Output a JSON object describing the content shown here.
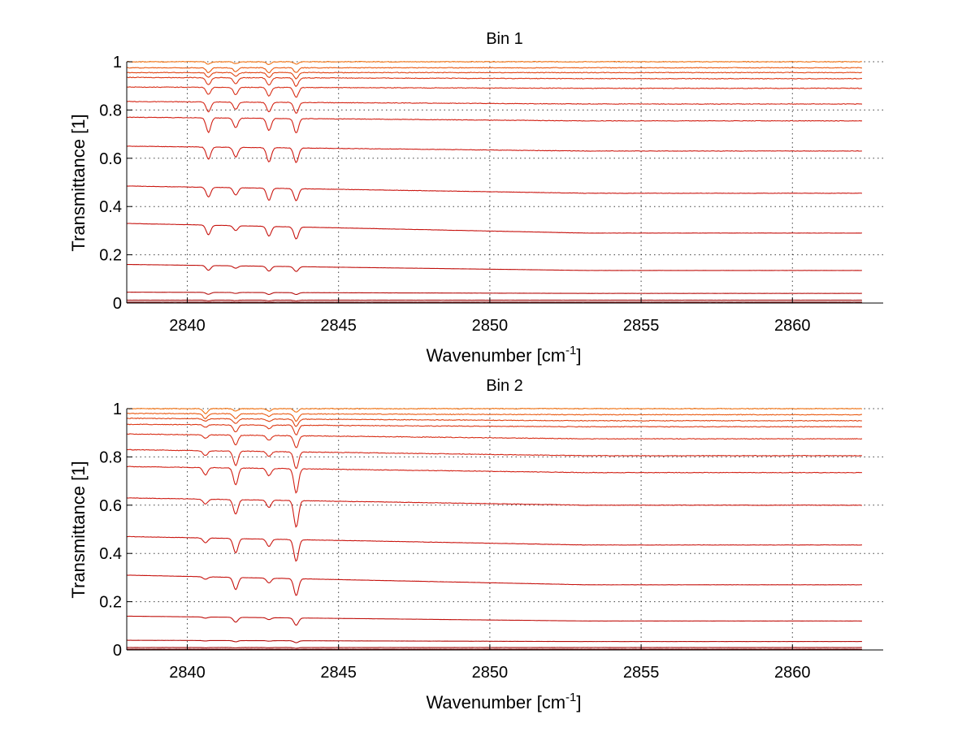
{
  "chart_data": [
    {
      "type": "line",
      "title": "Bin 1",
      "xlabel": {
        "main": "Wavenumber [cm",
        "sup": "-1",
        "tail": "]"
      },
      "ylabel": "Transmittance [1]",
      "xlim": [
        2838,
        2863
      ],
      "ylim": [
        0,
        1
      ],
      "xticks": [
        2840,
        2845,
        2850,
        2855,
        2860
      ],
      "yticks": [
        0,
        0.2,
        0.4,
        0.6,
        0.8,
        1
      ],
      "xtick_labels": [
        "2840",
        "2845",
        "2850",
        "2855",
        "2860"
      ],
      "ytick_labels": [
        "0",
        "0.2",
        "0.4",
        "0.6",
        "0.8",
        "1"
      ],
      "grid": true,
      "x_range": [
        2838,
        2862.3
      ],
      "absorption_lines": [
        2840.7,
        2841.6,
        2842.7,
        2843.6
      ],
      "series": [
        {
          "color": "#f07010",
          "start": 1.0,
          "end": 1.0,
          "depths": [
            0.01,
            0.008,
            0.012,
            0.01
          ]
        },
        {
          "color": "#ea5a12",
          "start": 0.975,
          "end": 0.975,
          "depths": [
            0.02,
            0.015,
            0.02,
            0.02
          ]
        },
        {
          "color": "#e04414",
          "start": 0.955,
          "end": 0.955,
          "depths": [
            0.02,
            0.015,
            0.02,
            0.025
          ]
        },
        {
          "color": "#dc3816",
          "start": 0.935,
          "end": 0.93,
          "depths": [
            0.03,
            0.025,
            0.03,
            0.035
          ]
        },
        {
          "color": "#d82e16",
          "start": 0.895,
          "end": 0.89,
          "depths": [
            0.03,
            0.03,
            0.035,
            0.04
          ]
        },
        {
          "color": "#d42616",
          "start": 0.835,
          "end": 0.825,
          "depths": [
            0.04,
            0.03,
            0.04,
            0.045
          ]
        },
        {
          "color": "#d22014",
          "start": 0.77,
          "end": 0.755,
          "depths": [
            0.06,
            0.04,
            0.05,
            0.06
          ]
        },
        {
          "color": "#ce1a12",
          "start": 0.65,
          "end": 0.63,
          "depths": [
            0.05,
            0.04,
            0.06,
            0.06
          ]
        },
        {
          "color": "#ca1610",
          "start": 0.485,
          "end": 0.455,
          "depths": [
            0.04,
            0.03,
            0.05,
            0.05
          ]
        },
        {
          "color": "#c6120e",
          "start": 0.33,
          "end": 0.29,
          "depths": [
            0.04,
            0.02,
            0.04,
            0.05
          ]
        },
        {
          "color": "#c0100c",
          "start": 0.16,
          "end": 0.135,
          "depths": [
            0.02,
            0.01,
            0.02,
            0.02
          ]
        },
        {
          "color": "#b40c0a",
          "start": 0.045,
          "end": 0.04,
          "depths": [
            0.008,
            0.004,
            0.008,
            0.008
          ]
        },
        {
          "color": "#a00808",
          "start": 0.012,
          "end": 0.012,
          "depths": [
            0.003,
            0.002,
            0.003,
            0.003
          ]
        },
        {
          "color": "#800404",
          "start": 0.004,
          "end": 0.004,
          "depths": [
            0.001,
            0.001,
            0.001,
            0.001
          ]
        }
      ]
    },
    {
      "type": "line",
      "title": "Bin 2",
      "xlabel": {
        "main": "Wavenumber [cm",
        "sup": "-1",
        "tail": "]"
      },
      "ylabel": "Transmittance [1]",
      "xlim": [
        2838,
        2863
      ],
      "ylim": [
        0,
        1
      ],
      "xticks": [
        2840,
        2845,
        2850,
        2855,
        2860
      ],
      "yticks": [
        0,
        0.2,
        0.4,
        0.6,
        0.8,
        1
      ],
      "xtick_labels": [
        "2840",
        "2845",
        "2850",
        "2855",
        "2860"
      ],
      "ytick_labels": [
        "0",
        "0.2",
        "0.4",
        "0.6",
        "0.8",
        "1"
      ],
      "grid": true,
      "x_range": [
        2838,
        2862.3
      ],
      "absorption_lines": [
        2840.6,
        2841.6,
        2842.7,
        2843.6
      ],
      "series": [
        {
          "color": "#f07010",
          "start": 1.0,
          "end": 1.0,
          "depths": [
            0.02,
            0.01,
            0.01,
            0.015
          ]
        },
        {
          "color": "#ea5a12",
          "start": 0.98,
          "end": 0.975,
          "depths": [
            0.02,
            0.02,
            0.01,
            0.03
          ]
        },
        {
          "color": "#e04414",
          "start": 0.96,
          "end": 0.95,
          "depths": [
            0.01,
            0.02,
            0.01,
            0.03
          ]
        },
        {
          "color": "#dc3816",
          "start": 0.935,
          "end": 0.925,
          "depths": [
            0.01,
            0.03,
            0.015,
            0.04
          ]
        },
        {
          "color": "#d82e16",
          "start": 0.895,
          "end": 0.875,
          "depths": [
            0.015,
            0.04,
            0.02,
            0.05
          ]
        },
        {
          "color": "#d42616",
          "start": 0.83,
          "end": 0.805,
          "depths": [
            0.02,
            0.06,
            0.02,
            0.07
          ]
        },
        {
          "color": "#d22014",
          "start": 0.76,
          "end": 0.735,
          "depths": [
            0.03,
            0.07,
            0.03,
            0.1
          ]
        },
        {
          "color": "#ce1a12",
          "start": 0.63,
          "end": 0.6,
          "depths": [
            0.02,
            0.06,
            0.03,
            0.11
          ]
        },
        {
          "color": "#ca1610",
          "start": 0.47,
          "end": 0.435,
          "depths": [
            0.02,
            0.06,
            0.03,
            0.09
          ]
        },
        {
          "color": "#c6120e",
          "start": 0.31,
          "end": 0.27,
          "depths": [
            0.01,
            0.05,
            0.02,
            0.07
          ]
        },
        {
          "color": "#c0100c",
          "start": 0.14,
          "end": 0.12,
          "depths": [
            0.005,
            0.02,
            0.008,
            0.03
          ]
        },
        {
          "color": "#b40c0a",
          "start": 0.04,
          "end": 0.035,
          "depths": [
            0.002,
            0.005,
            0.002,
            0.008
          ]
        },
        {
          "color": "#a00808",
          "start": 0.01,
          "end": 0.01,
          "depths": [
            0.001,
            0.002,
            0.001,
            0.003
          ]
        },
        {
          "color": "#800404",
          "start": 0.003,
          "end": 0.003,
          "depths": [
            0.0,
            0.001,
            0.0,
            0.001
          ]
        }
      ]
    }
  ]
}
